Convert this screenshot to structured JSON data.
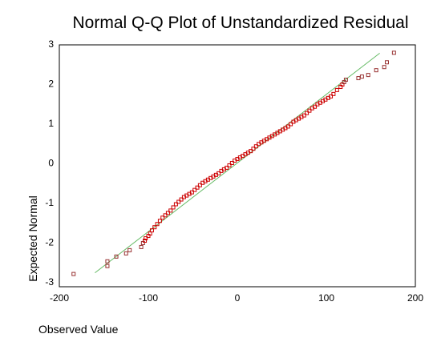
{
  "chart_data": {
    "type": "scatter",
    "title": "Normal Q-Q Plot of Unstandardized Residual",
    "xlabel": "Observed Value",
    "ylabel": "Expected Normal",
    "xlim": [
      -200,
      200
    ],
    "ylim": [
      -3,
      3
    ],
    "xticks": [
      "-200",
      "-100",
      "0",
      "100",
      "200"
    ],
    "yticks": [
      "3",
      "2",
      "1",
      "0",
      "-1",
      "-2",
      "-3"
    ],
    "grid": false,
    "reference_line": {
      "x": [
        -160,
        160
      ],
      "y": [
        -2.77,
        2.77
      ]
    },
    "colors": {
      "points": "#cc0000",
      "tail_points": "#993333",
      "line": "#66bb66"
    },
    "series": [
      {
        "values_x": [
          -184,
          -146,
          -146,
          -136,
          -125,
          -121,
          -108,
          -106,
          -104,
          -103,
          -100,
          -98,
          -96,
          -93,
          -90,
          -87,
          -84,
          -81,
          -78,
          -75,
          -72,
          -69,
          -66,
          -63,
          -60,
          -57,
          -54,
          -51,
          -48,
          -45,
          -42,
          -39,
          -36,
          -33,
          -30,
          -27,
          -24,
          -21,
          -18,
          -15,
          -12,
          -9,
          -6,
          -3,
          0,
          3,
          6,
          9,
          12,
          15,
          18,
          21,
          24,
          27,
          30,
          33,
          36,
          39,
          42,
          45,
          48,
          51,
          54,
          57,
          60,
          63,
          66,
          69,
          72,
          75,
          78,
          81,
          84,
          87,
          90,
          93,
          96,
          99,
          102,
          105,
          108,
          112,
          116,
          118,
          120,
          122,
          136,
          140,
          147,
          156,
          165,
          168,
          176
        ],
        "values_y": [
          -2.8,
          -2.6,
          -2.48,
          -2.36,
          -2.28,
          -2.2,
          -2.12,
          -2.02,
          -1.96,
          -1.9,
          -1.84,
          -1.78,
          -1.7,
          -1.62,
          -1.54,
          -1.46,
          -1.38,
          -1.32,
          -1.26,
          -1.2,
          -1.12,
          -1.04,
          -0.98,
          -0.92,
          -0.86,
          -0.82,
          -0.78,
          -0.74,
          -0.68,
          -0.62,
          -0.56,
          -0.5,
          -0.46,
          -0.42,
          -0.38,
          -0.34,
          -0.3,
          -0.26,
          -0.2,
          -0.16,
          -0.12,
          -0.06,
          0.0,
          0.06,
          0.1,
          0.14,
          0.18,
          0.22,
          0.26,
          0.3,
          0.36,
          0.42,
          0.48,
          0.52,
          0.56,
          0.6,
          0.64,
          0.68,
          0.72,
          0.76,
          0.8,
          0.84,
          0.88,
          0.92,
          0.98,
          1.04,
          1.08,
          1.12,
          1.16,
          1.2,
          1.26,
          1.32,
          1.38,
          1.42,
          1.48,
          1.52,
          1.56,
          1.6,
          1.64,
          1.68,
          1.74,
          1.84,
          1.92,
          1.98,
          2.04,
          2.1,
          2.14,
          2.18,
          2.22,
          2.34,
          2.42,
          2.54,
          2.78
        ]
      }
    ]
  }
}
